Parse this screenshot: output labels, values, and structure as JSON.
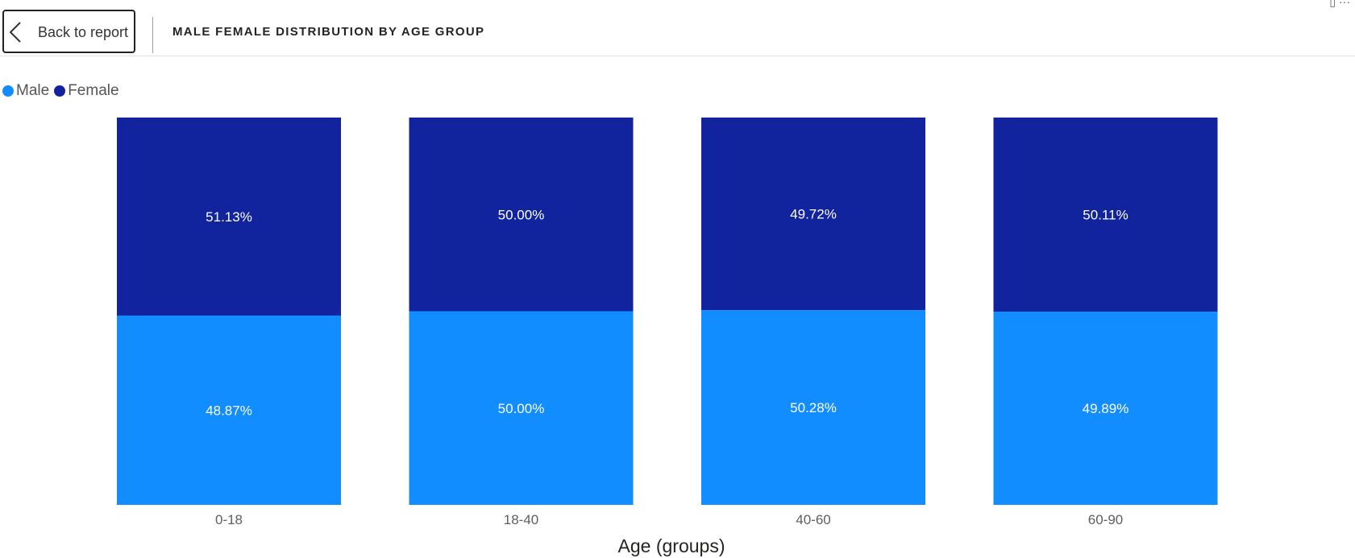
{
  "header": {
    "back_label": "Back to report",
    "title": "MALE FEMALE DISTRIBUTION BY AGE GROUP",
    "corner_icons": "▯ ···"
  },
  "chart_data": {
    "type": "bar",
    "stacked": true,
    "percent_stacked": true,
    "categories": [
      "0-18",
      "18-40",
      "40-60",
      "60-90"
    ],
    "series": [
      {
        "name": "Male",
        "color": "#118DFF",
        "values": [
          48.87,
          50.0,
          50.28,
          49.89
        ],
        "labels": [
          "48.87%",
          "50.00%",
          "50.28%",
          "49.89%"
        ]
      },
      {
        "name": "Female",
        "color": "#12239E",
        "values": [
          51.13,
          50.0,
          49.72,
          50.11
        ],
        "labels": [
          "51.13%",
          "50.00%",
          "49.72%",
          "50.11%"
        ]
      }
    ],
    "xlabel": "Age (groups)",
    "ylabel": "",
    "ylim": [
      0,
      100
    ],
    "legend_position": "top-left",
    "grid": false
  }
}
